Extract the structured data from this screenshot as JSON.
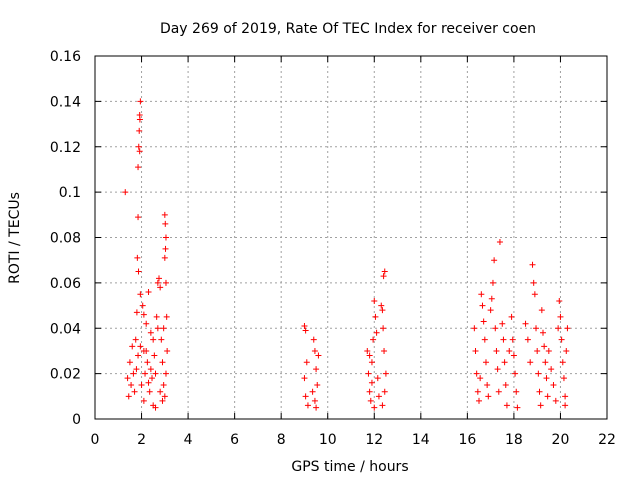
{
  "chart_data": {
    "type": "scatter",
    "title": "Day 269 of 2019, Rate Of TEC Index for receiver coen",
    "xlabel": "GPS time / hours",
    "ylabel": "ROTI / TECUs",
    "xlim": [
      0,
      22
    ],
    "ylim": [
      0,
      0.16
    ],
    "grid": true,
    "marker": "+",
    "color": "#ff0000",
    "x_ticks": [
      0,
      2,
      4,
      6,
      8,
      10,
      12,
      14,
      16,
      18,
      20,
      22
    ],
    "x_tick_labels": [
      "0",
      "2",
      "4",
      "6",
      "8",
      "10",
      "12",
      "14",
      "16",
      "18",
      "20",
      "22"
    ],
    "y_ticks": [
      0,
      0.02,
      0.04,
      0.06,
      0.08,
      0.1,
      0.12,
      0.14,
      0.16
    ],
    "y_tick_labels": [
      "0",
      "0.02",
      "0.04",
      "0.06",
      "0.08",
      "0.1",
      "0.12",
      "0.14",
      "0.16"
    ],
    "series": [
      {
        "name": "ROTI",
        "points": [
          [
            1.3,
            0.1
          ],
          [
            1.95,
            0.14
          ],
          [
            1.92,
            0.134
          ],
          [
            1.93,
            0.132
          ],
          [
            1.9,
            0.127
          ],
          [
            1.88,
            0.12
          ],
          [
            1.92,
            0.118
          ],
          [
            1.85,
            0.111
          ],
          [
            1.85,
            0.089
          ],
          [
            1.82,
            0.071
          ],
          [
            1.87,
            0.065
          ],
          [
            1.95,
            0.055
          ],
          [
            2.05,
            0.05
          ],
          [
            2.3,
            0.056
          ],
          [
            2.1,
            0.046
          ],
          [
            1.8,
            0.047
          ],
          [
            1.75,
            0.035
          ],
          [
            1.6,
            0.032
          ],
          [
            1.5,
            0.025
          ],
          [
            1.4,
            0.018
          ],
          [
            1.45,
            0.01
          ],
          [
            1.55,
            0.015
          ],
          [
            1.65,
            0.02
          ],
          [
            1.7,
            0.012
          ],
          [
            1.78,
            0.022
          ],
          [
            1.85,
            0.028
          ],
          [
            1.95,
            0.032
          ],
          [
            2.0,
            0.015
          ],
          [
            2.1,
            0.008
          ],
          [
            2.15,
            0.02
          ],
          [
            2.2,
            0.03
          ],
          [
            2.25,
            0.025
          ],
          [
            2.35,
            0.012
          ],
          [
            2.4,
            0.038
          ],
          [
            2.45,
            0.018
          ],
          [
            2.5,
            0.006
          ],
          [
            2.55,
            0.028
          ],
          [
            2.6,
            0.02
          ],
          [
            2.65,
            0.045
          ],
          [
            2.7,
            0.06
          ],
          [
            2.75,
            0.062
          ],
          [
            2.8,
            0.058
          ],
          [
            2.85,
            0.035
          ],
          [
            2.9,
            0.025
          ],
          [
            2.95,
            0.015
          ],
          [
            3.0,
            0.09
          ],
          [
            3.02,
            0.086
          ],
          [
            3.05,
            0.08
          ],
          [
            3.03,
            0.075
          ],
          [
            3.0,
            0.071
          ],
          [
            3.05,
            0.06
          ],
          [
            3.08,
            0.045
          ],
          [
            3.1,
            0.03
          ],
          [
            3.05,
            0.02
          ],
          [
            3.0,
            0.01
          ],
          [
            2.95,
            0.04
          ],
          [
            2.9,
            0.008
          ],
          [
            2.8,
            0.012
          ],
          [
            2.7,
            0.04
          ],
          [
            2.6,
            0.005
          ],
          [
            2.5,
            0.035
          ],
          [
            2.4,
            0.022
          ],
          [
            2.3,
            0.016
          ],
          [
            2.2,
            0.042
          ],
          [
            2.1,
            0.03
          ],
          [
            9.0,
            0.041
          ],
          [
            9.05,
            0.039
          ],
          [
            9.1,
            0.025
          ],
          [
            9.0,
            0.018
          ],
          [
            9.05,
            0.01
          ],
          [
            9.15,
            0.006
          ],
          [
            9.4,
            0.035
          ],
          [
            9.45,
            0.03
          ],
          [
            9.5,
            0.022
          ],
          [
            9.55,
            0.015
          ],
          [
            9.45,
            0.008
          ],
          [
            9.6,
            0.028
          ],
          [
            9.35,
            0.012
          ],
          [
            9.5,
            0.005
          ],
          [
            11.7,
            0.03
          ],
          [
            11.75,
            0.02
          ],
          [
            11.8,
            0.012
          ],
          [
            11.85,
            0.008
          ],
          [
            11.9,
            0.025
          ],
          [
            12.0,
            0.052
          ],
          [
            12.05,
            0.045
          ],
          [
            12.1,
            0.038
          ],
          [
            11.95,
            0.035
          ],
          [
            12.15,
            0.018
          ],
          [
            12.2,
            0.01
          ],
          [
            12.3,
            0.05
          ],
          [
            12.35,
            0.048
          ],
          [
            12.4,
            0.063
          ],
          [
            12.45,
            0.065
          ],
          [
            12.38,
            0.04
          ],
          [
            12.42,
            0.03
          ],
          [
            12.5,
            0.02
          ],
          [
            12.45,
            0.012
          ],
          [
            12.35,
            0.006
          ],
          [
            11.8,
            0.028
          ],
          [
            12.0,
            0.005
          ],
          [
            11.9,
            0.016
          ],
          [
            16.3,
            0.04
          ],
          [
            16.35,
            0.03
          ],
          [
            16.4,
            0.02
          ],
          [
            16.45,
            0.012
          ],
          [
            16.5,
            0.008
          ],
          [
            16.6,
            0.055
          ],
          [
            16.65,
            0.05
          ],
          [
            16.7,
            0.043
          ],
          [
            16.75,
            0.035
          ],
          [
            16.8,
            0.025
          ],
          [
            16.85,
            0.015
          ],
          [
            16.9,
            0.01
          ],
          [
            17.0,
            0.048
          ],
          [
            17.05,
            0.053
          ],
          [
            17.1,
            0.06
          ],
          [
            17.15,
            0.07
          ],
          [
            17.2,
            0.04
          ],
          [
            17.25,
            0.03
          ],
          [
            17.3,
            0.022
          ],
          [
            17.35,
            0.012
          ],
          [
            17.4,
            0.078
          ],
          [
            17.5,
            0.042
          ],
          [
            17.55,
            0.035
          ],
          [
            17.6,
            0.025
          ],
          [
            17.65,
            0.015
          ],
          [
            17.7,
            0.006
          ],
          [
            17.9,
            0.045
          ],
          [
            17.95,
            0.035
          ],
          [
            18.0,
            0.028
          ],
          [
            18.05,
            0.02
          ],
          [
            18.1,
            0.012
          ],
          [
            18.15,
            0.005
          ],
          [
            18.5,
            0.042
          ],
          [
            18.6,
            0.035
          ],
          [
            18.7,
            0.025
          ],
          [
            18.8,
            0.068
          ],
          [
            18.85,
            0.06
          ],
          [
            18.9,
            0.055
          ],
          [
            18.95,
            0.04
          ],
          [
            19.0,
            0.03
          ],
          [
            19.05,
            0.02
          ],
          [
            19.1,
            0.012
          ],
          [
            19.15,
            0.006
          ],
          [
            19.2,
            0.048
          ],
          [
            19.25,
            0.038
          ],
          [
            19.3,
            0.032
          ],
          [
            19.35,
            0.025
          ],
          [
            19.4,
            0.018
          ],
          [
            19.45,
            0.01
          ],
          [
            19.5,
            0.03
          ],
          [
            19.6,
            0.022
          ],
          [
            19.7,
            0.015
          ],
          [
            19.8,
            0.008
          ],
          [
            19.9,
            0.04
          ],
          [
            19.95,
            0.052
          ],
          [
            20.0,
            0.045
          ],
          [
            20.05,
            0.035
          ],
          [
            20.1,
            0.025
          ],
          [
            20.15,
            0.018
          ],
          [
            20.2,
            0.01
          ],
          [
            20.25,
            0.03
          ],
          [
            20.3,
            0.04
          ],
          [
            20.2,
            0.006
          ],
          [
            16.55,
            0.018
          ],
          [
            17.8,
            0.03
          ]
        ]
      }
    ]
  }
}
